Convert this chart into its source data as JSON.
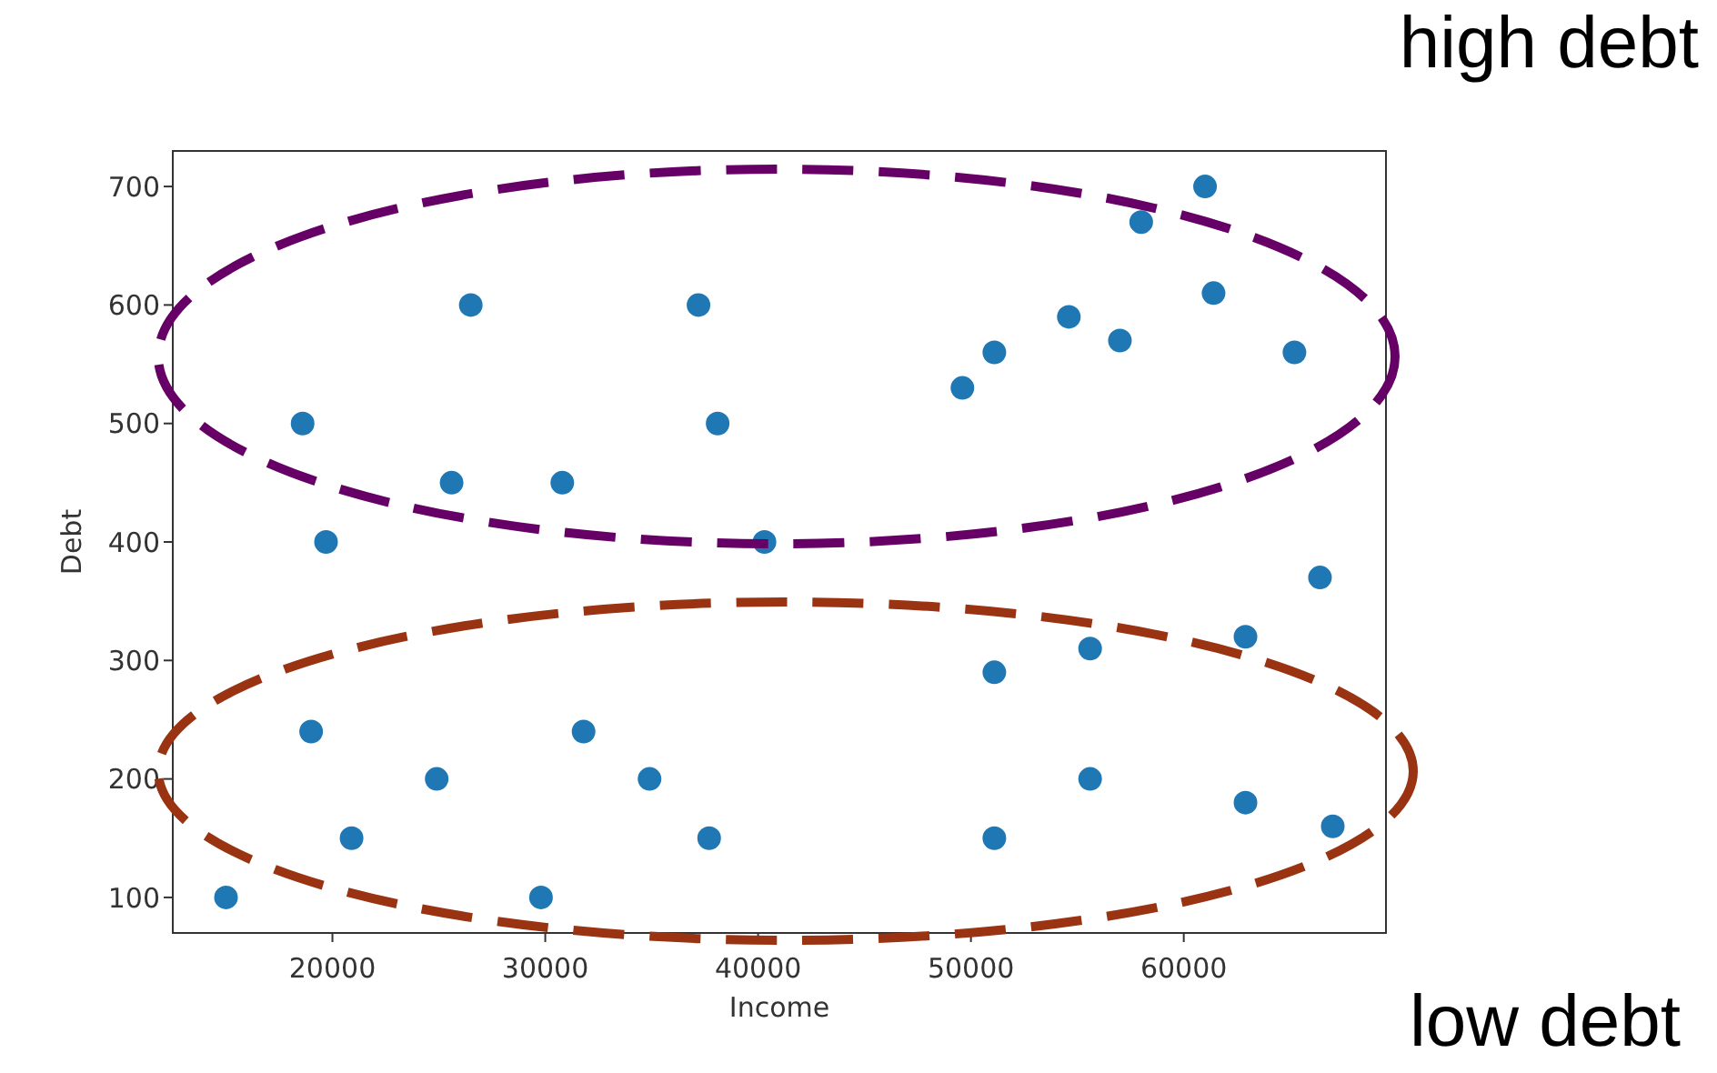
{
  "chart_data": {
    "type": "scatter",
    "xlabel": "Income",
    "ylabel": "Debt",
    "marker": "circle",
    "legend": false,
    "xlim": [
      12500,
      69500
    ],
    "xticks": [
      20000,
      30000,
      40000,
      50000,
      60000
    ],
    "ylim": [
      70,
      730
    ],
    "yticks": [
      100,
      200,
      300,
      400,
      500,
      600,
      700
    ],
    "annotations": [
      "high debt",
      "low debt"
    ],
    "series": [
      {
        "color": "#1f77b4",
        "x": [
          15000,
          18600,
          19700,
          19000,
          20900,
          24900,
          25600,
          26500,
          29800,
          30800,
          31800,
          34900,
          37200,
          37700,
          38100,
          40300,
          49600,
          51100,
          51100,
          51100,
          54600,
          55600,
          55600,
          57000,
          58000,
          61000,
          61400,
          62900,
          62900,
          65200,
          66400,
          67000
        ],
        "values": [
          100,
          500,
          400,
          240,
          150,
          200,
          450,
          600,
          100,
          450,
          240,
          200,
          600,
          150,
          500,
          400,
          530,
          560,
          290,
          150,
          590,
          310,
          200,
          570,
          670,
          700,
          610,
          320,
          180,
          560,
          370,
          160
        ]
      }
    ]
  }
}
